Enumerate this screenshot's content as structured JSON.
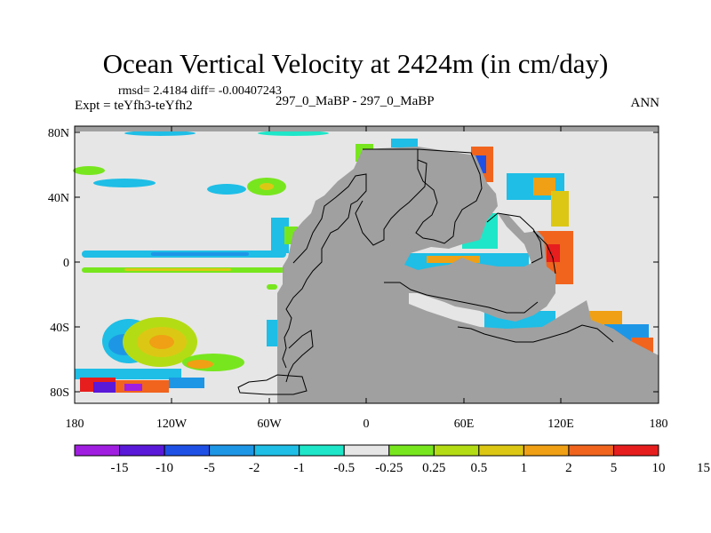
{
  "title": "Ocean Vertical Velocity at 2424m (in cm/day)",
  "stats_line": "rmsd= 2.4184 diff= -0.00407243",
  "experiment_line": "Expt = teYfh3-teYfh2",
  "runs_line": "297_0_MaBP - 297_0_MaBP",
  "season": "ANN",
  "map": {
    "lon_ticks": [
      "180",
      "120W",
      "60W",
      "0",
      "60E",
      "120E",
      "180"
    ],
    "lat_ticks": [
      "80N",
      "40N",
      "0",
      "40S",
      "80S"
    ],
    "land_color": "#a0a0a0",
    "neutral_color": "#e6e6e6"
  },
  "colorbar": {
    "colors": [
      "#a01ee0",
      "#5a18d8",
      "#1e50e6",
      "#1e96e6",
      "#1ebee6",
      "#1ee6c8",
      "#e6e6e6",
      "#78e61e",
      "#b4dc14",
      "#dcc814",
      "#f0a014",
      "#f0641e",
      "#e61e1e"
    ],
    "labels": [
      "-15",
      "-10",
      "-5",
      "-2",
      "-1",
      "-0.5",
      "-0.25",
      "0.25",
      "0.5",
      "1",
      "2",
      "5",
      "10",
      "15"
    ]
  }
}
